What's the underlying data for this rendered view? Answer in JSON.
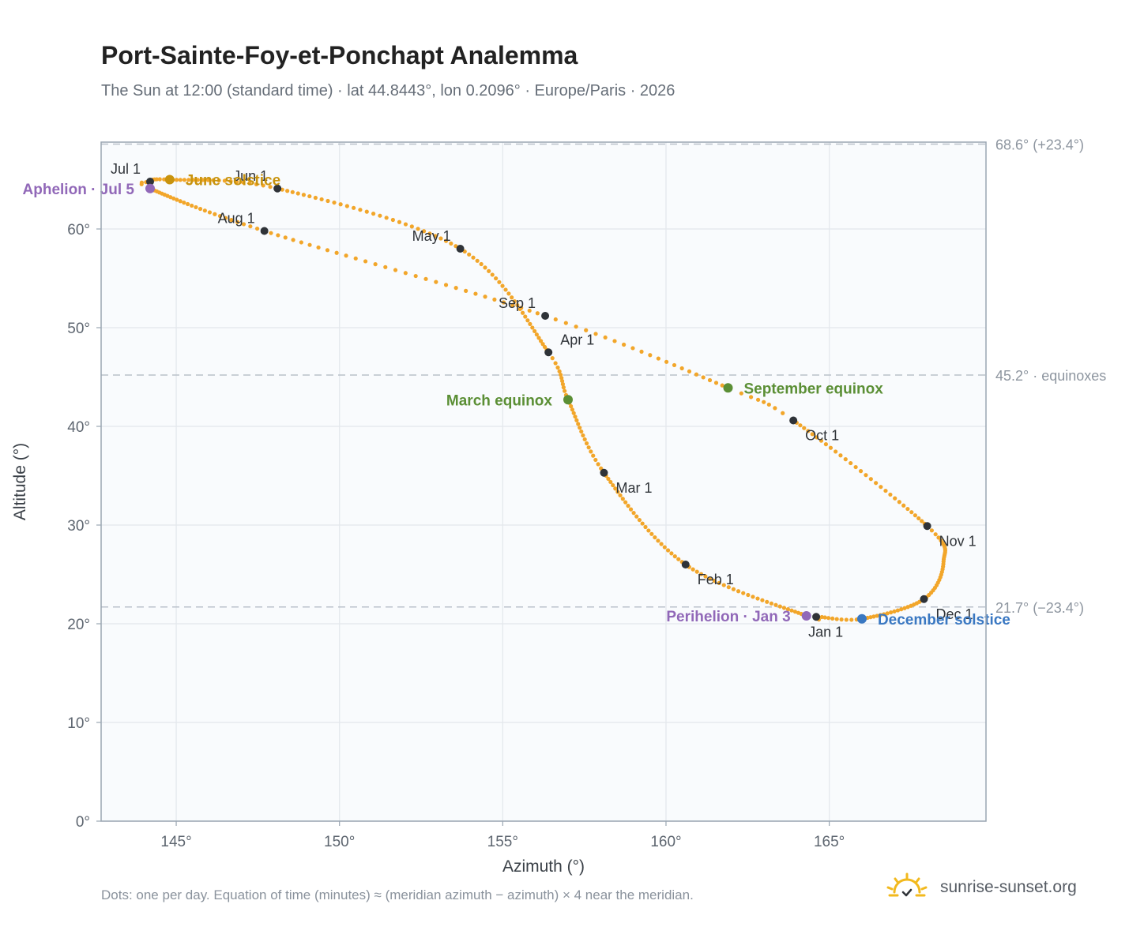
{
  "header": {
    "title": "Port-Sainte-Foy-et-Ponchapt Analemma",
    "subtitle": "The Sun at 12:00 (standard time) · lat 44.8443°, lon 0.2096° · Europe/Paris · 2026"
  },
  "footer": {
    "note": "Dots: one per day. Equation of time (minutes) ≈ (meridian azimuth − azimuth) × 4 near the meridian.",
    "brand": "sunrise-sunset.org"
  },
  "colors": {
    "curve": "#f2a62a",
    "month_marker": "#2f3338",
    "solstice_june": "#c8930e",
    "solstice_december": "#3a78c2",
    "equinox": "#5b8f35",
    "apsis": "#9168b8",
    "reference_line": "#b9c1ca",
    "plot_bg": "#f9fbfd",
    "grid": "#e3e7ec",
    "frame": "#9aa6b2"
  },
  "chart_data": {
    "type": "scatter",
    "title": "Port-Sainte-Foy-et-Ponchapt Analemma",
    "xlabel": "Azimuth (°)",
    "ylabel": "Altitude (°)",
    "xlim": [
      142.7,
      169.8
    ],
    "ylim": [
      0,
      68.8
    ],
    "x_ticks": [
      145,
      150,
      155,
      160,
      165
    ],
    "x_tick_labels": [
      "145°",
      "150°",
      "155°",
      "160°",
      "165°"
    ],
    "y_ticks": [
      0,
      10,
      20,
      30,
      40,
      50,
      60
    ],
    "y_tick_labels": [
      "0°",
      "10°",
      "20°",
      "30°",
      "40°",
      "50°",
      "60°"
    ],
    "grid": true,
    "series": [
      {
        "points_doy_az_alt": [
          [
            1,
            164.6,
            20.7
          ],
          [
            3,
            164.3,
            20.8
          ],
          [
            32,
            160.6,
            26.0
          ],
          [
            60,
            158.1,
            35.3
          ],
          [
            79,
            157.0,
            42.7
          ],
          [
            91,
            156.4,
            47.5
          ],
          [
            121,
            153.7,
            58.0
          ],
          [
            152,
            148.1,
            64.1
          ],
          [
            172,
            144.8,
            65.0
          ],
          [
            182,
            144.2,
            64.8
          ],
          [
            186,
            144.2,
            64.1
          ],
          [
            213,
            147.7,
            59.8
          ],
          [
            244,
            156.3,
            51.2
          ],
          [
            266,
            161.9,
            43.9
          ],
          [
            274,
            163.9,
            40.6
          ],
          [
            305,
            168.0,
            29.9
          ],
          [
            320,
            168.5,
            26.3
          ],
          [
            335,
            167.9,
            22.5
          ],
          [
            355,
            166.0,
            20.5
          ],
          [
            365,
            164.7,
            20.7
          ]
        ]
      }
    ],
    "month_markers": [
      {
        "label": "Jan 1",
        "azimuth": 164.6,
        "altitude": 20.7,
        "pos": "below"
      },
      {
        "label": "Feb 1",
        "azimuth": 160.6,
        "altitude": 26.0,
        "pos": "below-right"
      },
      {
        "label": "Mar 1",
        "azimuth": 158.1,
        "altitude": 35.3,
        "pos": "below-right"
      },
      {
        "label": "Apr 1",
        "azimuth": 156.4,
        "altitude": 47.5,
        "pos": "above-right"
      },
      {
        "label": "May 1",
        "azimuth": 153.7,
        "altitude": 58.0,
        "pos": "above-left"
      },
      {
        "label": "Jun 1",
        "azimuth": 148.1,
        "altitude": 64.1,
        "pos": "above-left"
      },
      {
        "label": "Jul 1",
        "azimuth": 144.2,
        "altitude": 64.8,
        "pos": "above-left"
      },
      {
        "label": "Aug 1",
        "azimuth": 147.7,
        "altitude": 59.8,
        "pos": "above-left"
      },
      {
        "label": "Sep 1",
        "azimuth": 156.3,
        "altitude": 51.2,
        "pos": "above-left"
      },
      {
        "label": "Oct 1",
        "azimuth": 163.9,
        "altitude": 40.6,
        "pos": "below-right"
      },
      {
        "label": "Nov 1",
        "azimuth": 168.0,
        "altitude": 29.9,
        "pos": "below-right"
      },
      {
        "label": "Dec 1",
        "azimuth": 167.9,
        "altitude": 22.5,
        "pos": "below-right"
      }
    ],
    "events": [
      {
        "label": "June solstice",
        "azimuth": 144.8,
        "altitude": 65.0,
        "color_key": "solstice_june",
        "side": "right"
      },
      {
        "label": "December solstice",
        "azimuth": 166.0,
        "altitude": 20.5,
        "color_key": "solstice_december",
        "side": "right"
      },
      {
        "label": "March equinox",
        "azimuth": 157.0,
        "altitude": 42.7,
        "color_key": "equinox",
        "side": "left"
      },
      {
        "label": "September equinox",
        "azimuth": 161.9,
        "altitude": 43.9,
        "color_key": "equinox",
        "side": "right"
      },
      {
        "label": "Aphelion · Jul 5",
        "azimuth": 144.2,
        "altitude": 64.1,
        "color_key": "apsis",
        "side": "left"
      },
      {
        "label": "Perihelion · Jan 3",
        "azimuth": 164.3,
        "altitude": 20.8,
        "color_key": "apsis",
        "side": "left"
      }
    ],
    "reference_lines": [
      {
        "altitude": 68.6,
        "label": "68.6° (+23.4°)"
      },
      {
        "altitude": 45.2,
        "label": "45.2° · equinoxes"
      },
      {
        "altitude": 21.7,
        "label": "21.7° (−23.4°)"
      }
    ]
  }
}
